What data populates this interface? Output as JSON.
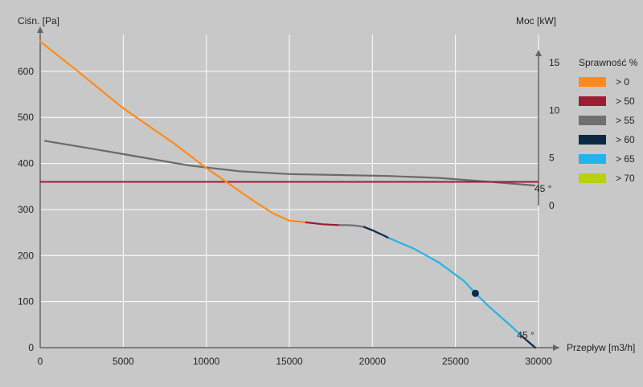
{
  "chart_data": {
    "type": "line",
    "ylabel_left": "Ciśn. [Pa]",
    "ylabel_right": "Moc [kW]",
    "xlabel": "Przepływ [m3/h]",
    "xlim": [
      0,
      30000
    ],
    "ylim_left": [
      0,
      680
    ],
    "ylim_right": [
      0,
      15
    ],
    "grid": true,
    "x_ticks": [
      0,
      5000,
      10000,
      15000,
      20000,
      25000,
      30000
    ],
    "y_ticks_left": [
      0,
      100,
      200,
      300,
      400,
      500,
      600
    ],
    "y_ticks_right": [
      0,
      5,
      10,
      15
    ],
    "pressure_curve": {
      "axis": "left",
      "segments": [
        {
          "efficiency": "> 0",
          "color": "#ff8a1a",
          "points": [
            [
              0,
              665
            ],
            [
              2000,
              608
            ],
            [
              5000,
              520
            ],
            [
              8000,
              445
            ],
            [
              10000,
              390
            ],
            [
              12000,
              340
            ],
            [
              13000,
              315
            ],
            [
              14000,
              292
            ],
            [
              15000,
              276
            ],
            [
              16000,
              272
            ]
          ]
        },
        {
          "efficiency": "> 50",
          "color": "#9b1c34",
          "points": [
            [
              16000,
              272
            ],
            [
              17000,
              268
            ],
            [
              18000,
              266
            ]
          ]
        },
        {
          "efficiency": "> 55",
          "color": "#707070",
          "points": [
            [
              18000,
              266
            ],
            [
              18500,
              266
            ],
            [
              19000,
              265
            ],
            [
              19500,
              262
            ]
          ]
        },
        {
          "efficiency": "> 60",
          "color": "#0d2a45",
          "points": [
            [
              19500,
              262
            ],
            [
              20000,
              255
            ],
            [
              20600,
              245
            ],
            [
              21000,
              238
            ]
          ]
        },
        {
          "efficiency": "> 65",
          "color": "#22b4e8",
          "points": [
            [
              21000,
              238
            ],
            [
              22500,
              215
            ],
            [
              24000,
              185
            ],
            [
              25500,
              145
            ],
            [
              26200,
              118
            ],
            [
              27000,
              90
            ],
            [
              28500,
              42
            ],
            [
              29000,
              25
            ]
          ]
        },
        {
          "efficiency": "> 60",
          "color": "#0d2a45",
          "points": [
            [
              29000,
              25
            ],
            [
              29800,
              0
            ]
          ]
        }
      ]
    },
    "power_curve": {
      "axis": "right",
      "color": "#6a6a6a",
      "points": [
        [
          250,
          6.8
        ],
        [
          3000,
          6.0
        ],
        [
          6000,
          5.1
        ],
        [
          9000,
          4.2
        ],
        [
          12000,
          3.6
        ],
        [
          15000,
          3.3
        ],
        [
          18000,
          3.2
        ],
        [
          21000,
          3.1
        ],
        [
          24000,
          2.9
        ],
        [
          27000,
          2.5
        ],
        [
          29800,
          2.1
        ]
      ]
    },
    "reference_line": {
      "axis": "left",
      "y": 360,
      "color": "#9b1c34"
    },
    "operating_point": {
      "x": 26200,
      "y": 118
    },
    "annotations": [
      {
        "text": "45 °",
        "x": 29950,
        "y": 345
      },
      {
        "text": "45 °",
        "x": 28900,
        "y": 27
      }
    ],
    "legend": {
      "title": "Sprawność %",
      "placement": "right",
      "items": [
        {
          "label": "> 0",
          "color": "#ff8a1a"
        },
        {
          "label": "> 50",
          "color": "#9b1c34"
        },
        {
          "label": "> 55",
          "color": "#707070"
        },
        {
          "label": "> 60",
          "color": "#0d2a45"
        },
        {
          "label": "> 65",
          "color": "#22b4e8"
        },
        {
          "label": "> 70",
          "color": "#b8d010"
        }
      ]
    }
  }
}
